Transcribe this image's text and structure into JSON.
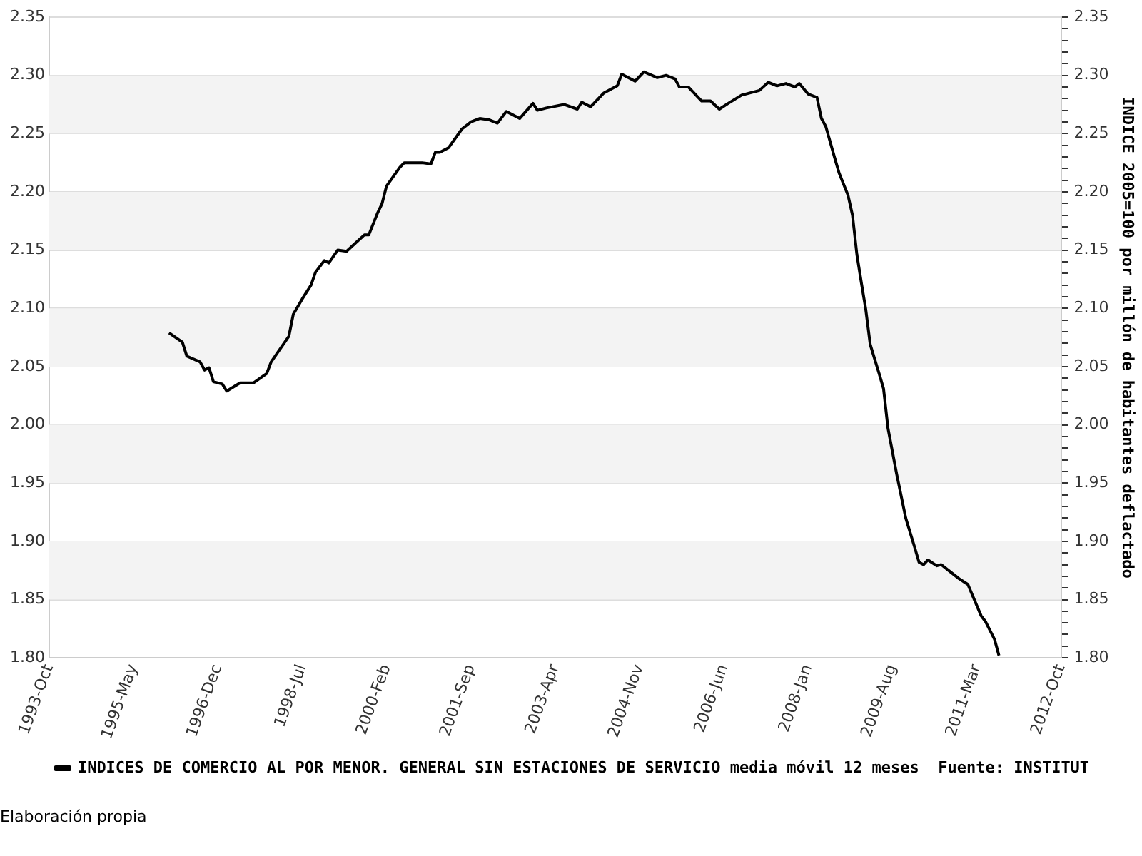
{
  "chart_data": {
    "type": "line",
    "y2label": "INDICE 2005=100 por millón de habitantes deflactado",
    "x": [
      "1996-01",
      "1996-04",
      "1996-05",
      "1996-08",
      "1996-09",
      "1996-10",
      "1996-11",
      "1997-01",
      "1997-02",
      "1997-05",
      "1997-08",
      "1997-11",
      "1997-12",
      "1998-04",
      "1998-05",
      "1998-07",
      "1998-09",
      "1998-10",
      "1998-12",
      "1999-01",
      "1999-03",
      "1999-05",
      "1999-07",
      "1999-09",
      "1999-10",
      "1999-12",
      "2000-01",
      "2000-02",
      "2000-05",
      "2000-06",
      "2000-08",
      "2000-10",
      "2000-12",
      "2001-01",
      "2001-02",
      "2001-04",
      "2001-07",
      "2001-09",
      "2001-11",
      "2002-01",
      "2002-03",
      "2002-05",
      "2002-07",
      "2002-08",
      "2002-11",
      "2002-12",
      "2003-02",
      "2003-06",
      "2003-09",
      "2003-10",
      "2003-12",
      "2004-03",
      "2004-06",
      "2004-07",
      "2004-10",
      "2004-12",
      "2005-03",
      "2005-05",
      "2005-07",
      "2005-08",
      "2005-10",
      "2006-01",
      "2006-03",
      "2006-05",
      "2006-07",
      "2006-10",
      "2007-02",
      "2007-04",
      "2007-06",
      "2007-08",
      "2007-10",
      "2007-11",
      "2008-01",
      "2008-03",
      "2008-04",
      "2008-05",
      "2008-07",
      "2008-08",
      "2008-10",
      "2008-11",
      "2008-12",
      "2009-01",
      "2009-02",
      "2009-03",
      "2009-05",
      "2009-06",
      "2009-07",
      "2009-09",
      "2009-11",
      "2010-01",
      "2010-02",
      "2010-03",
      "2010-04",
      "2010-06",
      "2010-07",
      "2010-09",
      "2010-11",
      "2011-01",
      "2011-02",
      "2011-04",
      "2011-05",
      "2011-07",
      "2011-08"
    ],
    "series": [
      {
        "name": "INDICES DE COMERCIO AL POR MENOR. GENERAL SIN ESTACIONES DE SERVICIO media móvil 12 meses  Fuente: INSTITUT",
        "color": "#000000",
        "values": [
          2.079,
          2.071,
          2.059,
          2.054,
          2.047,
          2.049,
          2.037,
          2.035,
          2.029,
          2.036,
          2.036,
          2.044,
          2.054,
          2.076,
          2.095,
          2.108,
          2.12,
          2.131,
          2.141,
          2.139,
          2.15,
          2.149,
          2.156,
          2.163,
          2.163,
          2.182,
          2.19,
          2.205,
          2.221,
          2.225,
          2.225,
          2.225,
          2.224,
          2.234,
          2.234,
          2.238,
          2.254,
          2.26,
          2.263,
          2.262,
          2.259,
          2.269,
          2.265,
          2.263,
          2.276,
          2.27,
          2.272,
          2.275,
          2.271,
          2.277,
          2.273,
          2.285,
          2.291,
          2.301,
          2.295,
          2.303,
          2.298,
          2.3,
          2.297,
          2.29,
          2.29,
          2.278,
          2.278,
          2.271,
          2.276,
          2.283,
          2.287,
          2.294,
          2.291,
          2.293,
          2.29,
          2.293,
          2.284,
          2.281,
          2.263,
          2.256,
          2.229,
          2.216,
          2.197,
          2.18,
          2.146,
          2.122,
          2.099,
          2.069,
          2.044,
          2.031,
          1.997,
          1.957,
          1.92,
          1.895,
          1.882,
          1.88,
          1.884,
          1.879,
          1.88,
          1.874,
          1.868,
          1.863,
          1.854,
          1.836,
          1.831,
          1.816,
          1.802
        ]
      }
    ],
    "xlim": [
      "1993-10",
      "2012-10"
    ],
    "xticks": [
      {
        "value": "1993-10",
        "label": "1993-Oct"
      },
      {
        "value": "1995-05",
        "label": "1995-May"
      },
      {
        "value": "1996-12",
        "label": "1996-Dec"
      },
      {
        "value": "1998-07",
        "label": "1998-Jul"
      },
      {
        "value": "2000-02",
        "label": "2000-Feb"
      },
      {
        "value": "2001-09",
        "label": "2001-Sep"
      },
      {
        "value": "2003-04",
        "label": "2003-Apr"
      },
      {
        "value": "2004-11",
        "label": "2004-Nov"
      },
      {
        "value": "2006-06",
        "label": "2006-Jun"
      },
      {
        "value": "2008-01",
        "label": "2008-Jan"
      },
      {
        "value": "2009-08",
        "label": "2009-Aug"
      },
      {
        "value": "2011-03",
        "label": "2011-Mar"
      },
      {
        "value": "2012-10",
        "label": "2012-Oct"
      }
    ],
    "ylim": [
      1.8,
      2.35
    ],
    "yticks": [
      {
        "value": 1.8,
        "label": "1.80"
      },
      {
        "value": 1.85,
        "label": "1.85"
      },
      {
        "value": 1.9,
        "label": "1.90"
      },
      {
        "value": 1.95,
        "label": "1.95"
      },
      {
        "value": 2.0,
        "label": "2.00"
      },
      {
        "value": 2.05,
        "label": "2.05"
      },
      {
        "value": 2.1,
        "label": "2.10"
      },
      {
        "value": 2.15,
        "label": "2.15"
      },
      {
        "value": 2.2,
        "label": "2.20"
      },
      {
        "value": 2.25,
        "label": "2.25"
      },
      {
        "value": 2.3,
        "label": "2.30"
      },
      {
        "value": 2.35,
        "label": "2.35"
      }
    ],
    "y2lim": [
      1.8,
      2.35
    ],
    "y2ticks": [
      {
        "value": 1.8,
        "label": "1.80"
      },
      {
        "value": 1.81,
        "label": null
      },
      {
        "value": 1.82,
        "label": null
      },
      {
        "value": 1.83,
        "label": null
      },
      {
        "value": 1.84,
        "label": null
      },
      {
        "value": 1.85,
        "label": "1.85"
      },
      {
        "value": 1.86,
        "label": null
      },
      {
        "value": 1.87,
        "label": null
      },
      {
        "value": 1.88,
        "label": null
      },
      {
        "value": 1.89,
        "label": null
      },
      {
        "value": 1.9,
        "label": "1.90"
      },
      {
        "value": 1.91,
        "label": null
      },
      {
        "value": 1.92,
        "label": null
      },
      {
        "value": 1.93,
        "label": null
      },
      {
        "value": 1.94,
        "label": null
      },
      {
        "value": 1.95,
        "label": "1.95"
      },
      {
        "value": 1.96,
        "label": null
      },
      {
        "value": 1.97,
        "label": null
      },
      {
        "value": 1.98,
        "label": null
      },
      {
        "value": 1.99,
        "label": null
      },
      {
        "value": 2.0,
        "label": "2.00"
      },
      {
        "value": 2.01,
        "label": null
      },
      {
        "value": 2.02,
        "label": null
      },
      {
        "value": 2.03,
        "label": null
      },
      {
        "value": 2.04,
        "label": null
      },
      {
        "value": 2.05,
        "label": "2.05"
      },
      {
        "value": 2.06,
        "label": null
      },
      {
        "value": 2.07,
        "label": null
      },
      {
        "value": 2.08,
        "label": null
      },
      {
        "value": 2.09,
        "label": null
      },
      {
        "value": 2.1,
        "label": "2.10"
      },
      {
        "value": 2.11,
        "label": null
      },
      {
        "value": 2.12,
        "label": null
      },
      {
        "value": 2.13,
        "label": null
      },
      {
        "value": 2.14,
        "label": null
      },
      {
        "value": 2.15,
        "label": "2.15"
      },
      {
        "value": 2.16,
        "label": null
      },
      {
        "value": 2.17,
        "label": null
      },
      {
        "value": 2.18,
        "label": null
      },
      {
        "value": 2.19,
        "label": null
      },
      {
        "value": 2.2,
        "label": "2.20"
      },
      {
        "value": 2.21,
        "label": null
      },
      {
        "value": 2.22,
        "label": null
      },
      {
        "value": 2.23,
        "label": null
      },
      {
        "value": 2.24,
        "label": null
      },
      {
        "value": 2.25,
        "label": "2.25"
      },
      {
        "value": 2.26,
        "label": null
      },
      {
        "value": 2.27,
        "label": null
      },
      {
        "value": 2.28,
        "label": null
      },
      {
        "value": 2.29,
        "label": null
      },
      {
        "value": 2.3,
        "label": "2.30"
      },
      {
        "value": 2.31,
        "label": null
      },
      {
        "value": 2.32,
        "label": null
      },
      {
        "value": 2.33,
        "label": null
      },
      {
        "value": 2.34,
        "label": null
      },
      {
        "value": 2.35,
        "label": "2.35"
      }
    ],
    "grid": "y",
    "legend": "bottom",
    "marker": "none",
    "line_style": "solid",
    "annotations": [
      "Elaboración propia"
    ]
  }
}
